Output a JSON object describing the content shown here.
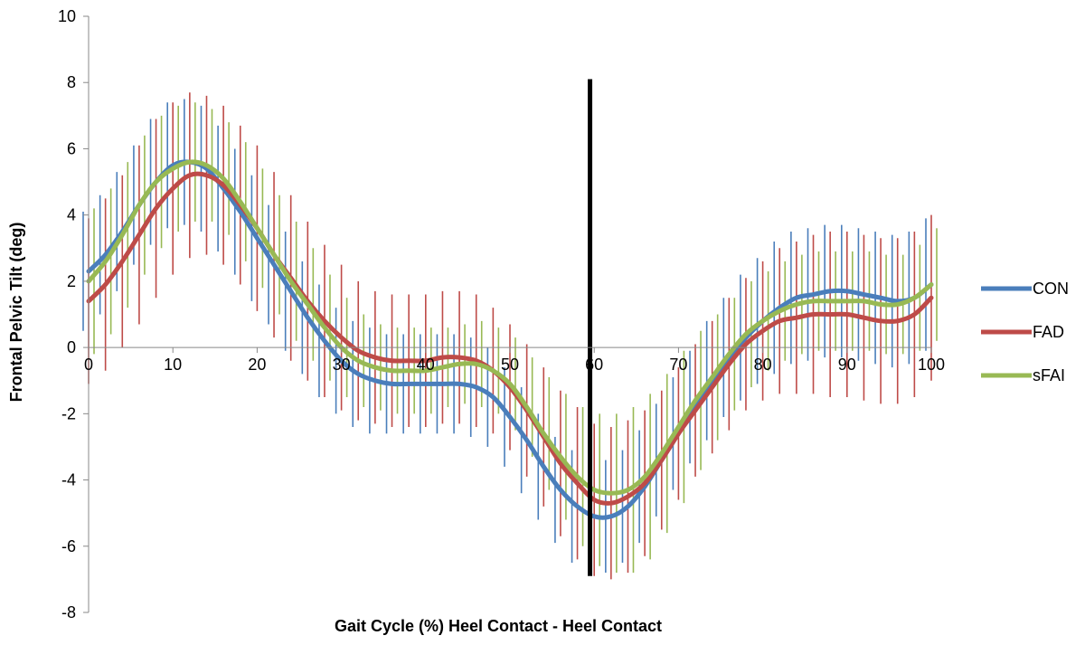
{
  "chart_data": {
    "type": "line",
    "title": "",
    "xlabel": "Gait Cycle (%) Heel Contact - Heel Contact",
    "ylabel": "Frontal Pelvic Tilt (deg)",
    "xlim": [
      0,
      100
    ],
    "ylim": [
      -8,
      10
    ],
    "x_ticks": [
      "0",
      "10",
      "20",
      "30",
      "40",
      "50",
      "60",
      "70",
      "80",
      "90",
      "100"
    ],
    "y_ticks": [
      "10",
      "8",
      "6",
      "4",
      "2",
      "0",
      "-2",
      "-4",
      "-6",
      "-8"
    ],
    "grid": false,
    "legend_position": "right",
    "error_bars": true,
    "x": [
      0,
      2,
      4,
      6,
      8,
      10,
      12,
      14,
      16,
      18,
      20,
      22,
      24,
      26,
      28,
      30,
      32,
      34,
      36,
      38,
      40,
      42,
      44,
      46,
      48,
      50,
      52,
      54,
      56,
      58,
      60,
      62,
      64,
      66,
      68,
      70,
      72,
      74,
      76,
      78,
      80,
      82,
      84,
      86,
      88,
      90,
      92,
      94,
      96,
      98,
      100
    ],
    "vertical_line": {
      "x": 59.5,
      "y_range": [
        -6.9,
        8.1
      ],
      "color": "#000000"
    },
    "series": [
      {
        "name": "CON",
        "color": "#4a7ebb",
        "values": [
          2.3,
          2.8,
          3.5,
          4.3,
          5.0,
          5.5,
          5.6,
          5.4,
          4.8,
          4.1,
          3.3,
          2.5,
          1.7,
          0.9,
          0.2,
          -0.4,
          -0.8,
          -1.0,
          -1.1,
          -1.1,
          -1.1,
          -1.1,
          -1.1,
          -1.2,
          -1.5,
          -2.1,
          -2.8,
          -3.6,
          -4.3,
          -4.8,
          -5.1,
          -5.1,
          -4.8,
          -4.2,
          -3.4,
          -2.6,
          -1.8,
          -1.0,
          -0.3,
          0.3,
          0.8,
          1.2,
          1.5,
          1.6,
          1.7,
          1.7,
          1.6,
          1.5,
          1.4,
          1.5,
          1.9
        ],
        "errors": [
          1.8,
          1.8,
          1.8,
          1.8,
          1.9,
          1.9,
          1.9,
          1.9,
          1.9,
          1.9,
          1.9,
          1.8,
          1.8,
          1.7,
          1.7,
          1.6,
          1.6,
          1.6,
          1.5,
          1.5,
          1.5,
          1.5,
          1.5,
          1.5,
          1.5,
          1.5,
          1.6,
          1.6,
          1.6,
          1.7,
          1.7,
          1.7,
          1.7,
          1.7,
          1.7,
          1.7,
          1.7,
          1.8,
          1.8,
          1.9,
          1.9,
          2.0,
          2.0,
          2.0,
          2.0,
          2.0,
          2.0,
          2.0,
          2.0,
          2.0,
          2.0
        ]
      },
      {
        "name": "FAD",
        "color": "#be4b48",
        "values": [
          1.4,
          1.9,
          2.6,
          3.4,
          4.2,
          4.8,
          5.2,
          5.2,
          4.9,
          4.3,
          3.6,
          2.8,
          2.1,
          1.4,
          0.8,
          0.3,
          -0.1,
          -0.3,
          -0.4,
          -0.4,
          -0.4,
          -0.3,
          -0.3,
          -0.4,
          -0.7,
          -1.2,
          -1.9,
          -2.7,
          -3.5,
          -4.1,
          -4.6,
          -4.7,
          -4.5,
          -4.1,
          -3.4,
          -2.6,
          -1.9,
          -1.2,
          -0.5,
          0.1,
          0.5,
          0.8,
          0.9,
          1.0,
          1.0,
          1.0,
          0.9,
          0.8,
          0.8,
          1.0,
          1.5
        ],
        "errors": [
          2.5,
          2.6,
          2.6,
          2.7,
          2.7,
          2.6,
          2.5,
          2.4,
          2.4,
          2.4,
          2.5,
          2.5,
          2.5,
          2.4,
          2.3,
          2.2,
          2.1,
          2.0,
          2.0,
          2.0,
          2.0,
          2.0,
          2.0,
          2.0,
          1.9,
          1.9,
          2.0,
          2.1,
          2.2,
          2.3,
          2.3,
          2.3,
          2.3,
          2.2,
          2.1,
          2.0,
          2.0,
          2.0,
          2.0,
          2.0,
          2.1,
          2.2,
          2.3,
          2.4,
          2.5,
          2.5,
          2.5,
          2.5,
          2.5,
          2.5,
          2.5
        ]
      },
      {
        "name": "sFAI",
        "color": "#98b954",
        "values": [
          2.0,
          2.6,
          3.4,
          4.3,
          5.0,
          5.4,
          5.6,
          5.5,
          5.1,
          4.4,
          3.6,
          2.8,
          2.0,
          1.3,
          0.6,
          0.0,
          -0.4,
          -0.6,
          -0.7,
          -0.7,
          -0.7,
          -0.6,
          -0.5,
          -0.5,
          -0.7,
          -1.1,
          -1.8,
          -2.6,
          -3.3,
          -3.9,
          -4.3,
          -4.4,
          -4.3,
          -3.9,
          -3.2,
          -2.4,
          -1.6,
          -0.9,
          -0.2,
          0.4,
          0.8,
          1.1,
          1.3,
          1.4,
          1.4,
          1.4,
          1.4,
          1.3,
          1.3,
          1.5,
          1.9
        ],
        "errors": [
          2.2,
          2.2,
          2.2,
          2.1,
          2.0,
          1.9,
          1.8,
          1.7,
          1.7,
          1.8,
          1.8,
          1.8,
          1.8,
          1.7,
          1.6,
          1.5,
          1.4,
          1.3,
          1.3,
          1.3,
          1.3,
          1.2,
          1.2,
          1.3,
          1.3,
          1.4,
          1.5,
          1.7,
          1.9,
          2.1,
          2.3,
          2.4,
          2.5,
          2.5,
          2.4,
          2.3,
          2.1,
          1.9,
          1.7,
          1.6,
          1.5,
          1.5,
          1.5,
          1.5,
          1.5,
          1.5,
          1.5,
          1.5,
          1.5,
          1.6,
          1.7
        ]
      }
    ]
  }
}
